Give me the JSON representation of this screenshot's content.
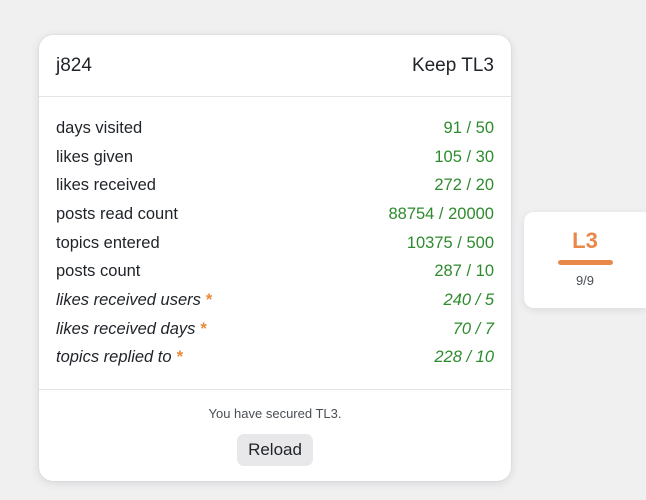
{
  "card": {
    "username": "j824",
    "goal": "Keep TL3",
    "stats": [
      {
        "label": "days visited",
        "value": "91 / 50",
        "required": false
      },
      {
        "label": "likes given",
        "value": "105 / 30",
        "required": false
      },
      {
        "label": "likes received",
        "value": "272 / 20",
        "required": false
      },
      {
        "label": "posts read count",
        "value": "88754 / 20000",
        "required": false
      },
      {
        "label": "topics entered",
        "value": "10375 / 500",
        "required": false
      },
      {
        "label": "posts count",
        "value": "287 / 10",
        "required": false
      },
      {
        "label": "likes received users",
        "value": "240 / 5",
        "required": true
      },
      {
        "label": "likes received days",
        "value": "70 / 7",
        "required": true
      },
      {
        "label": "topics replied to",
        "value": "228 / 10",
        "required": true
      }
    ],
    "required_marker": "*",
    "status_text": "You have secured TL3.",
    "reload_label": "Reload"
  },
  "badge": {
    "level": "L3",
    "progress": "9/9",
    "progress_fraction": 1.0,
    "accent_color": "#e8884a"
  },
  "colors": {
    "value_green": "#2e8b2e",
    "star_orange": "#e88a3a"
  }
}
